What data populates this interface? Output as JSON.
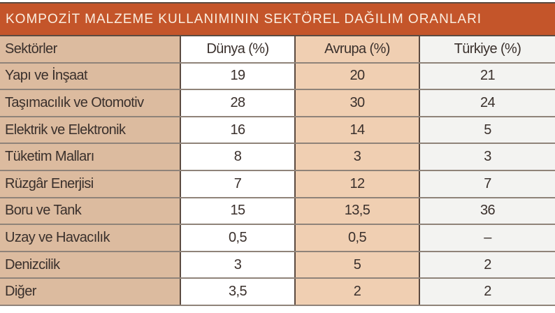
{
  "title": "KOMPOZİT MALZEME KULLANIMININ SEKTÖREL DAĞILIM ORANLARI",
  "headers": [
    "Sektörler",
    "Dünya (%)",
    "Avrupa (%)",
    "Türkiye (%)"
  ],
  "rows": [
    [
      "Yapı ve İnşaat",
      "19",
      "20",
      "21"
    ],
    [
      "Taşımacılık ve Otomotiv",
      "28",
      "30",
      "24"
    ],
    [
      "Elektrik ve Elektronik",
      "16",
      "14",
      "5"
    ],
    [
      "Tüketim Malları",
      "8",
      "3",
      "3"
    ],
    [
      "Rüzgâr Enerjisi",
      "7",
      "12",
      "7"
    ],
    [
      "Boru ve Tank",
      "15",
      "13,5",
      "36"
    ],
    [
      "Uzay ve Havacılık",
      "0,5",
      "0,5",
      "–"
    ],
    [
      "Denizcilik",
      "3",
      "5",
      "2"
    ],
    [
      "Diğer",
      "3,5",
      "2",
      "2"
    ]
  ],
  "colors": {
    "title_bar": "#c4552a",
    "sector_column": "#dcbb9f",
    "europe_column": "#f0cfb2",
    "border": "#5b4a40"
  }
}
